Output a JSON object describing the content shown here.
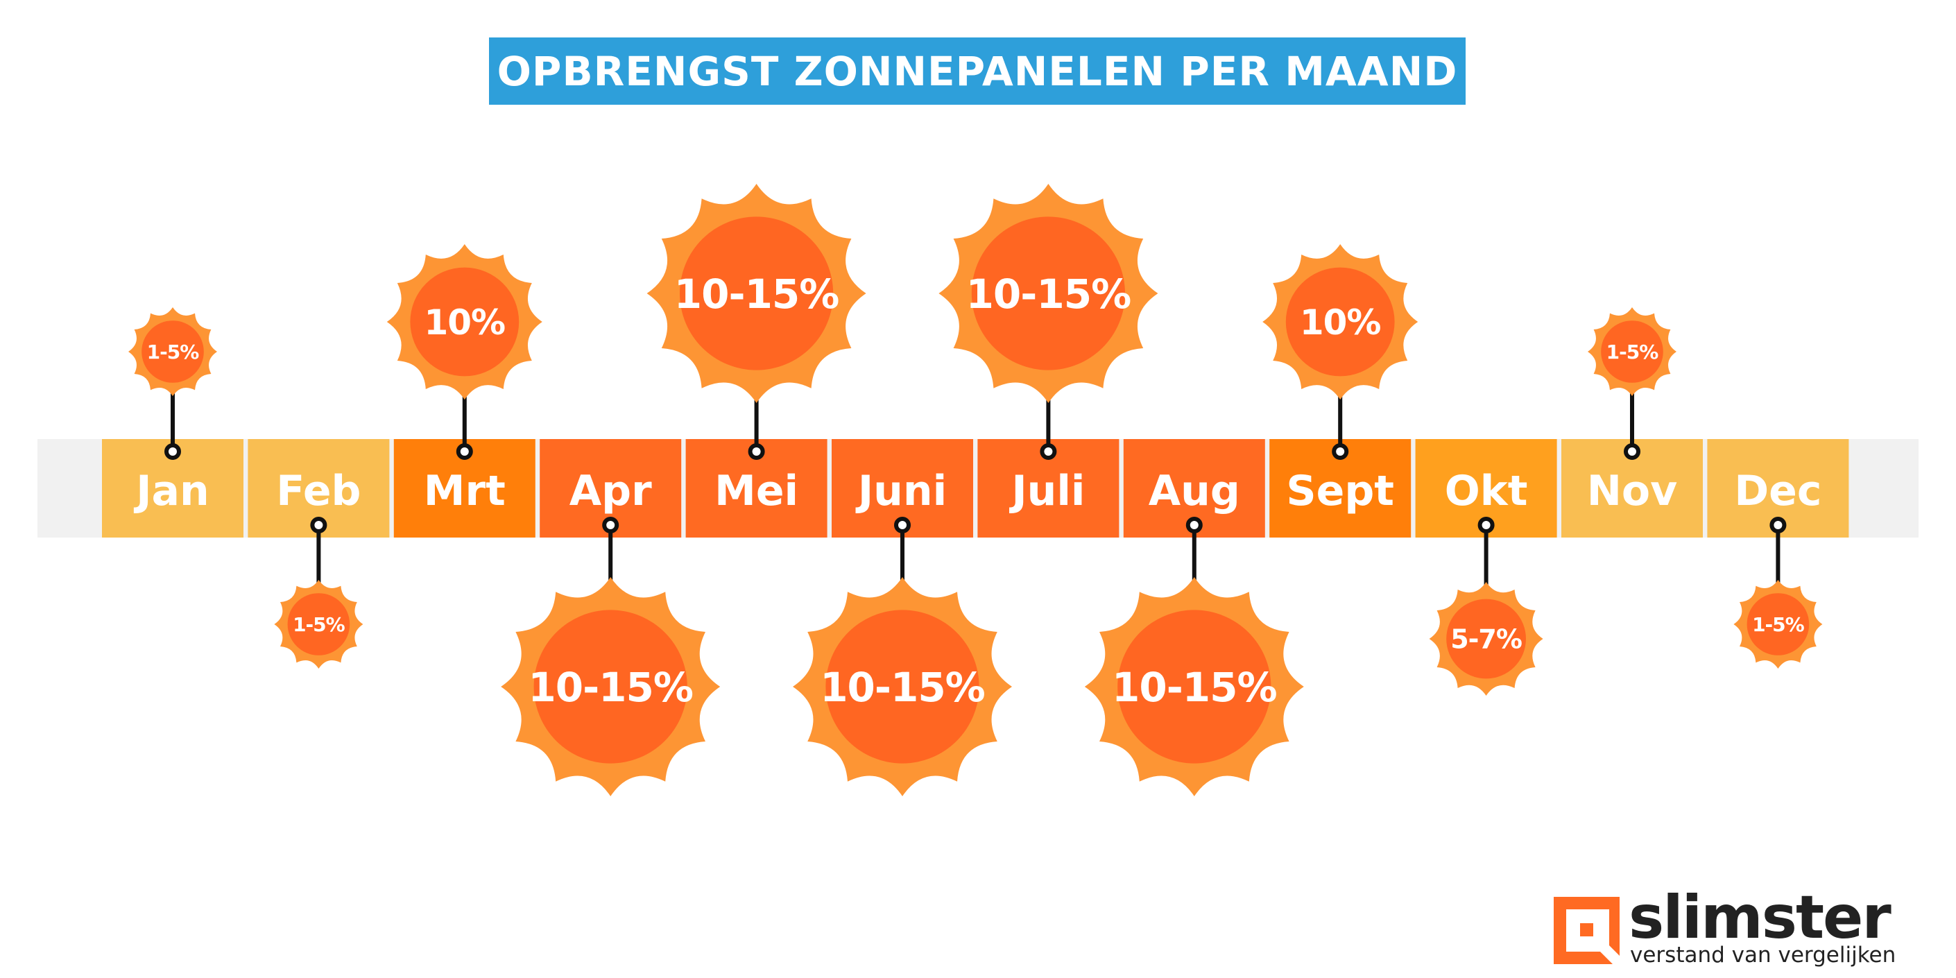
{
  "title": "OPBRENGST ZONNEPANELEN PER MAAND",
  "colors": {
    "title_bg": "#2E9FDA",
    "sun_outer": "#FD9534",
    "sun_inner": "#FF6622",
    "low": "#F9BE52",
    "mid": "#FF7F0A",
    "high": "#FF6A22",
    "okt": "#FFA01E",
    "track": "#F1F1F1"
  },
  "months": [
    {
      "label": "Jan",
      "value": "1-5%",
      "color": "#F9BE52",
      "side": "above"
    },
    {
      "label": "Feb",
      "value": "1-5%",
      "color": "#F9BE52",
      "side": "below"
    },
    {
      "label": "Mrt",
      "value": "10%",
      "color": "#FF7F0A",
      "side": "above"
    },
    {
      "label": "Apr",
      "value": "10-15%",
      "color": "#FF6A22",
      "side": "below"
    },
    {
      "label": "Mei",
      "value": "10-15%",
      "color": "#FF6A22",
      "side": "above"
    },
    {
      "label": "Juni",
      "value": "10-15%",
      "color": "#FF6A22",
      "side": "below"
    },
    {
      "label": "Juli",
      "value": "10-15%",
      "color": "#FF6A22",
      "side": "above"
    },
    {
      "label": "Aug",
      "value": "10-15%",
      "color": "#FF6A22",
      "side": "below"
    },
    {
      "label": "Sept",
      "value": "10%",
      "color": "#FF7F0A",
      "side": "above"
    },
    {
      "label": "Okt",
      "value": "5-7%",
      "color": "#FFA01E",
      "side": "below"
    },
    {
      "label": "Nov",
      "value": "1-5%",
      "color": "#F9BE52",
      "side": "above"
    },
    {
      "label": "Dec",
      "value": "1-5%",
      "color": "#F9BE52",
      "side": "below"
    }
  ],
  "logo": {
    "name": "slimster",
    "tagline": "verstand van vergelijken",
    "color": "#FF6A22"
  }
}
